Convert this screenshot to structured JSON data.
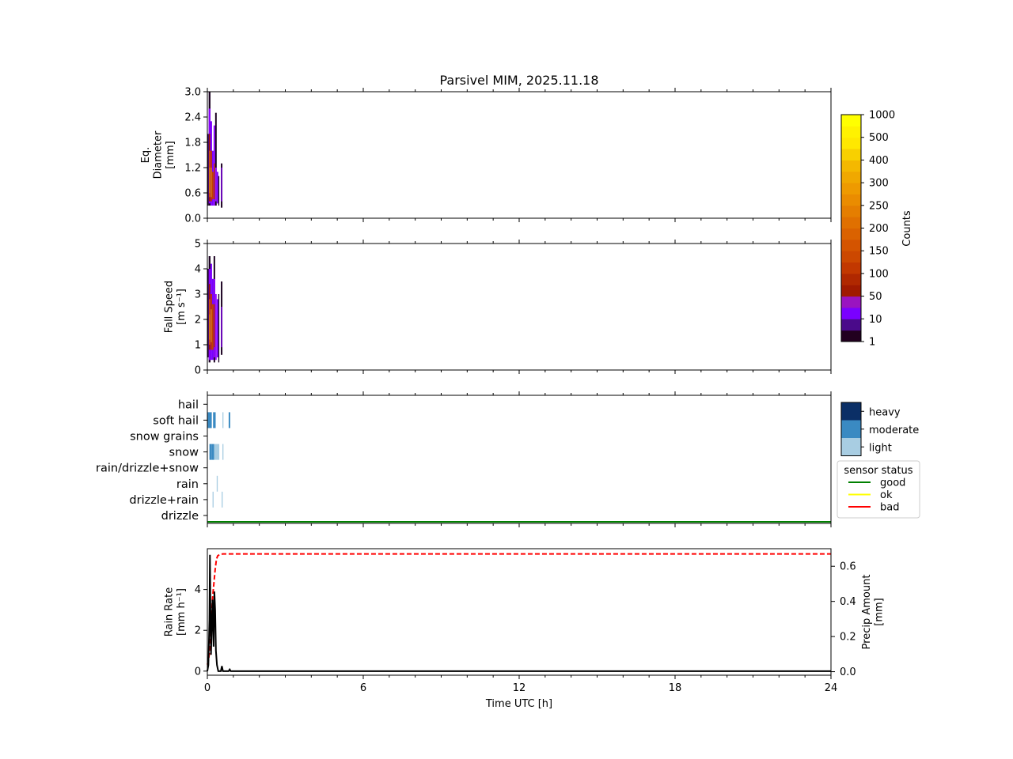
{
  "title": "Parsivel MIM, 2025.11.18",
  "chart_data": [
    {
      "type": "heatmap",
      "panel": "diameter",
      "ylabel_lines": [
        "Eq.",
        "Diameter",
        "[mm]"
      ],
      "xlim": [
        0,
        24
      ],
      "ylim": [
        0,
        3.0
      ],
      "yticks": [
        0.0,
        0.6,
        1.2,
        1.8,
        2.4,
        3.0
      ],
      "ytick_labels": [
        "0.0",
        "0.6",
        "1.2",
        "1.8",
        "2.4",
        "3.0"
      ],
      "cells": [
        {
          "t": [
            0.0,
            0.05
          ],
          "y": [
            0.3,
            2.0
          ],
          "c": "#1a0020"
        },
        {
          "t": [
            0.05,
            0.12
          ],
          "y": [
            0.3,
            3.0
          ],
          "c": "#1a0020"
        },
        {
          "t": [
            0.05,
            0.12
          ],
          "y": [
            0.35,
            2.6
          ],
          "c": "#8a00ff"
        },
        {
          "t": [
            0.06,
            0.11
          ],
          "y": [
            0.4,
            2.0
          ],
          "c": "#a01800"
        },
        {
          "t": [
            0.06,
            0.11
          ],
          "y": [
            0.5,
            1.6
          ],
          "c": "#d05000"
        },
        {
          "t": [
            0.07,
            0.1
          ],
          "y": [
            0.6,
            1.2
          ],
          "c": "#e08a00"
        },
        {
          "t": [
            0.12,
            0.18
          ],
          "y": [
            0.3,
            2.3
          ],
          "c": "#7a00ff"
        },
        {
          "t": [
            0.12,
            0.18
          ],
          "y": [
            0.4,
            1.6
          ],
          "c": "#c03000"
        },
        {
          "t": [
            0.13,
            0.17
          ],
          "y": [
            0.5,
            1.2
          ],
          "c": "#e08a00"
        },
        {
          "t": [
            0.18,
            0.24
          ],
          "y": [
            0.3,
            1.6
          ],
          "c": "#7a00ff"
        },
        {
          "t": [
            0.18,
            0.24
          ],
          "y": [
            0.45,
            1.1
          ],
          "c": "#c04000"
        },
        {
          "t": [
            0.24,
            0.3
          ],
          "y": [
            0.3,
            2.2
          ],
          "c": "#8a00ff"
        },
        {
          "t": [
            0.25,
            0.29
          ],
          "y": [
            0.45,
            1.3
          ],
          "c": "#c02000"
        },
        {
          "t": [
            0.3,
            0.36
          ],
          "y": [
            0.3,
            2.5
          ],
          "c": "#1a0020"
        },
        {
          "t": [
            0.3,
            0.36
          ],
          "y": [
            0.4,
            1.2
          ],
          "c": "#9a10ff"
        },
        {
          "t": [
            0.36,
            0.42
          ],
          "y": [
            0.35,
            1.1
          ],
          "c": "#7a00ff"
        },
        {
          "t": [
            0.42,
            0.46
          ],
          "y": [
            0.3,
            1.0
          ],
          "c": "#1a0020"
        },
        {
          "t": [
            0.52,
            0.58
          ],
          "y": [
            0.25,
            1.3
          ],
          "c": "#1a0020"
        },
        {
          "t": [
            0.53,
            0.57
          ],
          "y": [
            0.4,
            1.2
          ],
          "c": "#8a00ff"
        }
      ]
    },
    {
      "type": "heatmap",
      "panel": "fall_speed",
      "ylabel_lines": [
        "Fall Speed",
        "[m s⁻¹]"
      ],
      "xlim": [
        0,
        24
      ],
      "ylim": [
        0,
        5
      ],
      "yticks": [
        0,
        1,
        2,
        3,
        4,
        5
      ],
      "ytick_labels": [
        "0",
        "1",
        "2",
        "3",
        "4",
        "5"
      ],
      "cells": [
        {
          "t": [
            0.0,
            0.05
          ],
          "y": [
            0.5,
            4.0
          ],
          "c": "#1a0020"
        },
        {
          "t": [
            0.05,
            0.12
          ],
          "y": [
            0.3,
            4.5
          ],
          "c": "#1a0020"
        },
        {
          "t": [
            0.05,
            0.12
          ],
          "y": [
            0.4,
            4.0
          ],
          "c": "#8a00ff"
        },
        {
          "t": [
            0.06,
            0.11
          ],
          "y": [
            0.8,
            3.4
          ],
          "c": "#a01800"
        },
        {
          "t": [
            0.06,
            0.11
          ],
          "y": [
            1.0,
            2.8
          ],
          "c": "#d05000"
        },
        {
          "t": [
            0.07,
            0.1
          ],
          "y": [
            1.2,
            2.2
          ],
          "c": "#e08a00"
        },
        {
          "t": [
            0.12,
            0.18
          ],
          "y": [
            0.4,
            4.2
          ],
          "c": "#7a00ff"
        },
        {
          "t": [
            0.12,
            0.18
          ],
          "y": [
            0.8,
            3.0
          ],
          "c": "#c03000"
        },
        {
          "t": [
            0.13,
            0.17
          ],
          "y": [
            1.1,
            2.4
          ],
          "c": "#e08a00"
        },
        {
          "t": [
            0.18,
            0.24
          ],
          "y": [
            0.4,
            3.6
          ],
          "c": "#7a00ff"
        },
        {
          "t": [
            0.18,
            0.24
          ],
          "y": [
            0.8,
            2.6
          ],
          "c": "#c04000"
        },
        {
          "t": [
            0.24,
            0.3
          ],
          "y": [
            0.3,
            4.5
          ],
          "c": "#1a0020"
        },
        {
          "t": [
            0.24,
            0.3
          ],
          "y": [
            0.5,
            3.6
          ],
          "c": "#8a00ff"
        },
        {
          "t": [
            0.25,
            0.29
          ],
          "y": [
            0.9,
            2.6
          ],
          "c": "#c02000"
        },
        {
          "t": [
            0.3,
            0.36
          ],
          "y": [
            0.4,
            3.0
          ],
          "c": "#9a10ff"
        },
        {
          "t": [
            0.36,
            0.42
          ],
          "y": [
            0.5,
            2.8
          ],
          "c": "#7a00ff"
        },
        {
          "t": [
            0.42,
            0.46
          ],
          "y": [
            0.3,
            3.0
          ],
          "c": "#1a0020"
        },
        {
          "t": [
            0.52,
            0.58
          ],
          "y": [
            0.6,
            3.5
          ],
          "c": "#1a0020"
        },
        {
          "t": [
            0.53,
            0.57
          ],
          "y": [
            0.9,
            2.5
          ],
          "c": "#8a00ff"
        }
      ]
    },
    {
      "type": "heatmap",
      "panel": "precip_type",
      "categories": [
        "drizzle",
        "drizzle+rain",
        "rain",
        "rain/drizzle+snow",
        "snow",
        "snow grains",
        "soft hail",
        "hail"
      ],
      "xlim": [
        0,
        24
      ],
      "intensity_colors": {
        "light": "#a8cde2",
        "moderate": "#3a8ac2",
        "heavy": "#0b2f66"
      },
      "blocks": [
        {
          "cat": "soft hail",
          "t": [
            0.0,
            0.17
          ],
          "level": "moderate"
        },
        {
          "cat": "soft hail",
          "t": [
            0.22,
            0.32
          ],
          "level": "moderate"
        },
        {
          "cat": "soft hail",
          "t": [
            0.58,
            0.62
          ],
          "level": "light"
        },
        {
          "cat": "soft hail",
          "t": [
            0.82,
            0.88
          ],
          "level": "moderate"
        },
        {
          "cat": "snow",
          "t": [
            0.08,
            0.16
          ],
          "level": "moderate"
        },
        {
          "cat": "snow",
          "t": [
            0.16,
            0.26
          ],
          "level": "moderate"
        },
        {
          "cat": "snow",
          "t": [
            0.26,
            0.46
          ],
          "level": "light"
        },
        {
          "cat": "snow",
          "t": [
            0.58,
            0.62
          ],
          "level": "light"
        },
        {
          "cat": "rain",
          "t": [
            0.36,
            0.4
          ],
          "level": "light"
        },
        {
          "cat": "drizzle+rain",
          "t": [
            0.2,
            0.24
          ],
          "level": "light"
        },
        {
          "cat": "drizzle+rain",
          "t": [
            0.55,
            0.59
          ],
          "level": "light"
        }
      ],
      "status_line": {
        "value": "good",
        "t": [
          0,
          24
        ]
      },
      "intensity_legend": [
        "heavy",
        "moderate",
        "light"
      ],
      "status_legend": {
        "title": "sensor status",
        "entries": [
          {
            "label": "good",
            "color": "#008000"
          },
          {
            "label": "ok",
            "color": "#ffff00"
          },
          {
            "label": "bad",
            "color": "#ff0000"
          }
        ]
      }
    },
    {
      "type": "line",
      "panel": "rain",
      "xlabel": "Time UTC [h]",
      "ylabel_left_lines": [
        "Rain Rate",
        "[mm h⁻¹]"
      ],
      "ylabel_right_lines": [
        "Precip Amount",
        "[mm]"
      ],
      "xlim": [
        0,
        24
      ],
      "xticks": [
        0,
        6,
        12,
        18,
        24
      ],
      "ylim_left": [
        -0.2,
        6.0
      ],
      "yticks_left": [
        0,
        2,
        4
      ],
      "ylim_right": [
        -0.02,
        0.7
      ],
      "yticks_right": [
        0.0,
        0.2,
        0.4,
        0.6
      ],
      "ytick_labels_right": [
        "0.0",
        "0.2",
        "0.4",
        "0.6"
      ],
      "series": [
        {
          "axis": "left",
          "color": "#000000",
          "style": "solid",
          "points": [
            [
              0,
              0
            ],
            [
              0.04,
              0.3
            ],
            [
              0.08,
              2.5
            ],
            [
              0.1,
              5.7
            ],
            [
              0.12,
              3.0
            ],
            [
              0.14,
              0.8
            ],
            [
              0.17,
              2.2
            ],
            [
              0.2,
              3.5
            ],
            [
              0.24,
              1.2
            ],
            [
              0.27,
              3.9
            ],
            [
              0.3,
              3.0
            ],
            [
              0.33,
              1.0
            ],
            [
              0.37,
              0.3
            ],
            [
              0.42,
              0.0
            ],
            [
              0.52,
              0.0
            ],
            [
              0.56,
              0.25
            ],
            [
              0.6,
              0.0
            ],
            [
              0.82,
              0.0
            ],
            [
              0.86,
              0.08
            ],
            [
              0.9,
              0.0
            ],
            [
              24,
              0
            ]
          ]
        },
        {
          "axis": "right",
          "color": "#ff0000",
          "style": "dashed",
          "points": [
            [
              0,
              0.04
            ],
            [
              0.05,
              0.07
            ],
            [
              0.1,
              0.14
            ],
            [
              0.15,
              0.28
            ],
            [
              0.2,
              0.42
            ],
            [
              0.25,
              0.5
            ],
            [
              0.3,
              0.58
            ],
            [
              0.35,
              0.64
            ],
            [
              0.4,
              0.66
            ],
            [
              0.5,
              0.668
            ],
            [
              0.6,
              0.67
            ],
            [
              24,
              0.67
            ]
          ]
        }
      ]
    }
  ],
  "colorbar": {
    "label": "Counts",
    "tick_labels": [
      "1",
      "10",
      "50",
      "100",
      "150",
      "200",
      "250",
      "300",
      "400",
      "500",
      "1000"
    ],
    "colors": [
      "#22001f",
      "#4a0a8a",
      "#7a00ff",
      "#9a14c0",
      "#a01a00",
      "#b02800",
      "#c23800",
      "#cc4800",
      "#d45400",
      "#da6200",
      "#e07000",
      "#e57e00",
      "#ea8c00",
      "#ee9a00",
      "#f0a800",
      "#f4b800",
      "#f8d000",
      "#ffe800",
      "#fff200",
      "#ffff00"
    ]
  },
  "shared_xtick_labels": [
    "0",
    "6",
    "12",
    "18",
    "24"
  ]
}
